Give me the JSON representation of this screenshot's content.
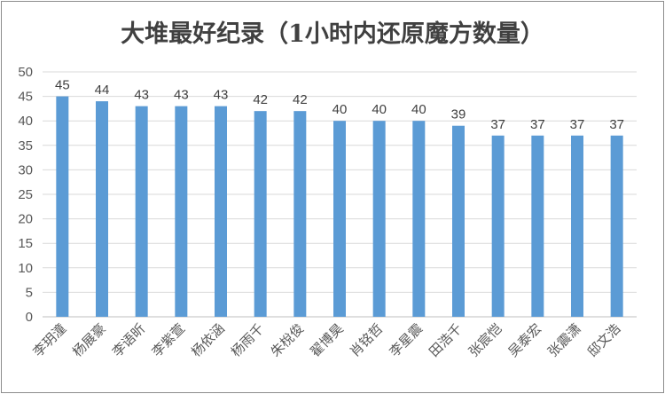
{
  "chart_data": {
    "type": "bar",
    "title": "大堆最好纪录（1小时内还原魔方数量）",
    "xlabel": "",
    "ylabel": "",
    "categories": [
      "李玥潼",
      "杨展豪",
      "李语昕",
      "李紫萱",
      "杨依涵",
      "杨雨千",
      "朱梲俊",
      "翟博昊",
      "肖铭哲",
      "李星震",
      "田浩千",
      "张宸恺",
      "吴泰宏",
      "张震潇",
      "邸文浩"
    ],
    "values": [
      45,
      44,
      43,
      43,
      43,
      42,
      42,
      40,
      40,
      40,
      39,
      37,
      37,
      37,
      37
    ],
    "ylim": [
      0,
      50
    ],
    "yticks": [
      0,
      5,
      10,
      15,
      20,
      25,
      30,
      35,
      40,
      45,
      50
    ],
    "grid": true,
    "legend": "none",
    "bar_color": "#5b9bd5",
    "grid_color": "#d9d9d9"
  }
}
